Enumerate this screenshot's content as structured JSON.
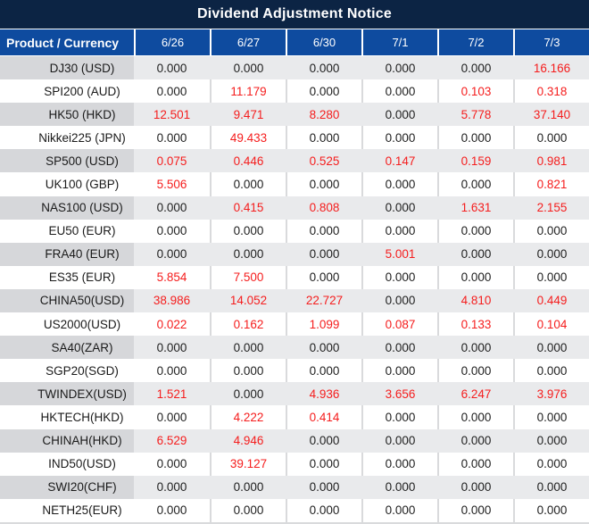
{
  "title": "Dividend Adjustment Notice",
  "table": {
    "header": {
      "product": "Product / Currency",
      "dates": [
        "6/26",
        "6/27",
        "6/30",
        "7/1",
        "7/2",
        "7/3"
      ]
    },
    "rows": [
      {
        "product": "DJ30 (USD)",
        "values": [
          "0.000",
          "0.000",
          "0.000",
          "0.000",
          "0.000",
          "16.166"
        ],
        "red": [
          0,
          0,
          0,
          0,
          0,
          1
        ]
      },
      {
        "product": "SPI200 (AUD)",
        "values": [
          "0.000",
          "11.179",
          "0.000",
          "0.000",
          "0.103",
          "0.318"
        ],
        "red": [
          0,
          1,
          0,
          0,
          1,
          1
        ]
      },
      {
        "product": "HK50 (HKD)",
        "values": [
          "12.501",
          "9.471",
          "8.280",
          "0.000",
          "5.778",
          "37.140"
        ],
        "red": [
          1,
          1,
          1,
          0,
          1,
          1
        ]
      },
      {
        "product": "Nikkei225 (JPN)",
        "values": [
          "0.000",
          "49.433",
          "0.000",
          "0.000",
          "0.000",
          "0.000"
        ],
        "red": [
          0,
          1,
          0,
          0,
          0,
          0
        ]
      },
      {
        "product": "SP500 (USD)",
        "values": [
          "0.075",
          "0.446",
          "0.525",
          "0.147",
          "0.159",
          "0.981"
        ],
        "red": [
          1,
          1,
          1,
          1,
          1,
          1
        ]
      },
      {
        "product": "UK100 (GBP)",
        "values": [
          "5.506",
          "0.000",
          "0.000",
          "0.000",
          "0.000",
          "0.821"
        ],
        "red": [
          1,
          0,
          0,
          0,
          0,
          1
        ]
      },
      {
        "product": "NAS100 (USD)",
        "values": [
          "0.000",
          "0.415",
          "0.808",
          "0.000",
          "1.631",
          "2.155"
        ],
        "red": [
          0,
          1,
          1,
          0,
          1,
          1
        ]
      },
      {
        "product": "EU50 (EUR)",
        "values": [
          "0.000",
          "0.000",
          "0.000",
          "0.000",
          "0.000",
          "0.000"
        ],
        "red": [
          0,
          0,
          0,
          0,
          0,
          0
        ]
      },
      {
        "product": "FRA40 (EUR)",
        "values": [
          "0.000",
          "0.000",
          "0.000",
          "5.001",
          "0.000",
          "0.000"
        ],
        "red": [
          0,
          0,
          0,
          1,
          0,
          0
        ]
      },
      {
        "product": "ES35 (EUR)",
        "values": [
          "5.854",
          "7.500",
          "0.000",
          "0.000",
          "0.000",
          "0.000"
        ],
        "red": [
          1,
          1,
          0,
          0,
          0,
          0
        ]
      },
      {
        "product": "CHINA50(USD)",
        "values": [
          "38.986",
          "14.052",
          "22.727",
          "0.000",
          "4.810",
          "0.449"
        ],
        "red": [
          1,
          1,
          1,
          0,
          1,
          1
        ]
      },
      {
        "product": "US2000(USD)",
        "values": [
          "0.022",
          "0.162",
          "1.099",
          "0.087",
          "0.133",
          "0.104"
        ],
        "red": [
          1,
          1,
          1,
          1,
          1,
          1
        ]
      },
      {
        "product": "SA40(ZAR)",
        "values": [
          "0.000",
          "0.000",
          "0.000",
          "0.000",
          "0.000",
          "0.000"
        ],
        "red": [
          0,
          0,
          0,
          0,
          0,
          0
        ]
      },
      {
        "product": "SGP20(SGD)",
        "values": [
          "0.000",
          "0.000",
          "0.000",
          "0.000",
          "0.000",
          "0.000"
        ],
        "red": [
          0,
          0,
          0,
          0,
          0,
          0
        ]
      },
      {
        "product": "TWINDEX(USD)",
        "values": [
          "1.521",
          "0.000",
          "4.936",
          "3.656",
          "6.247",
          "3.976"
        ],
        "red": [
          1,
          0,
          1,
          1,
          1,
          1
        ]
      },
      {
        "product": "HKTECH(HKD)",
        "values": [
          "0.000",
          "4.222",
          "0.414",
          "0.000",
          "0.000",
          "0.000"
        ],
        "red": [
          0,
          1,
          1,
          0,
          0,
          0
        ]
      },
      {
        "product": "CHINAH(HKD)",
        "values": [
          "6.529",
          "4.946",
          "0.000",
          "0.000",
          "0.000",
          "0.000"
        ],
        "red": [
          1,
          1,
          0,
          0,
          0,
          0
        ]
      },
      {
        "product": "IND50(USD)",
        "values": [
          "0.000",
          "39.127",
          "0.000",
          "0.000",
          "0.000",
          "0.000"
        ],
        "red": [
          0,
          1,
          0,
          0,
          0,
          0
        ]
      },
      {
        "product": "SWI20(CHF)",
        "values": [
          "0.000",
          "0.000",
          "0.000",
          "0.000",
          "0.000",
          "0.000"
        ],
        "red": [
          0,
          0,
          0,
          0,
          0,
          0
        ]
      },
      {
        "product": "NETH25(EUR)",
        "values": [
          "0.000",
          "0.000",
          "0.000",
          "0.000",
          "0.000",
          "0.000"
        ],
        "red": [
          0,
          0,
          0,
          0,
          0,
          0
        ]
      }
    ]
  },
  "colors": {
    "title_bar_bg": "#0c2444",
    "header_bg": "#0e4b9f",
    "header_text": "#ffffff",
    "stripe_label_bg": "#d6d7da",
    "stripe_data_bg": "#e9eaec",
    "stripe_divider": "#f3f4f6",
    "white_row_bg": "#ffffff",
    "grid_line": "#d9dadc",
    "value_red": "#f51d1d",
    "value_black": "#212121"
  }
}
